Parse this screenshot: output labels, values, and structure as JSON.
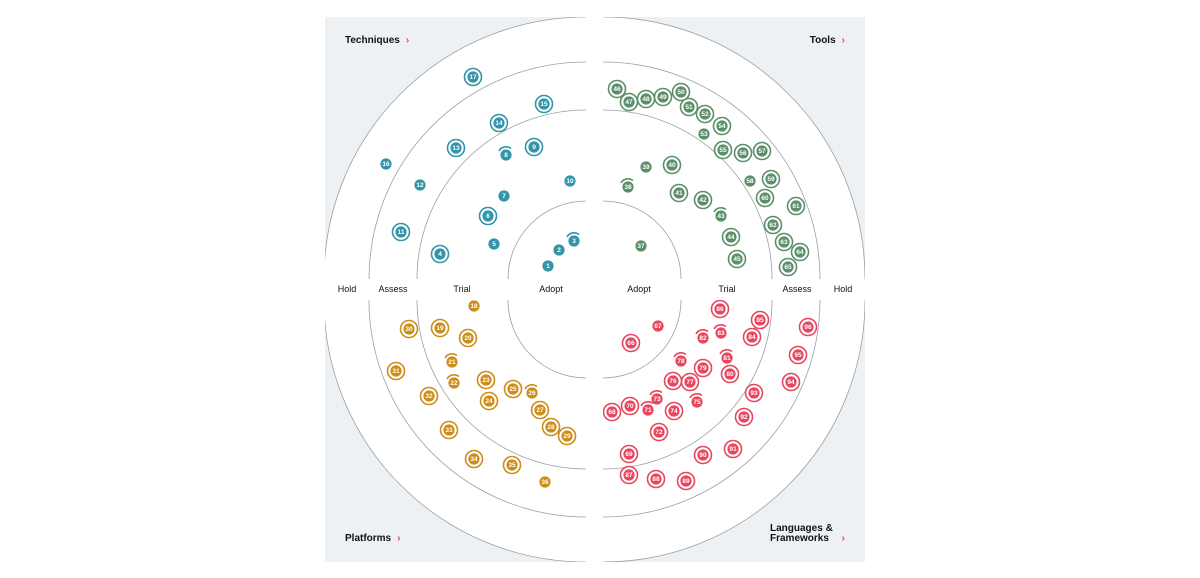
{
  "quadrants": {
    "techniques": {
      "title": "Techniques",
      "color": "#3295a8"
    },
    "tools": {
      "title": "Tools",
      "color": "#5b8f69"
    },
    "platforms": {
      "title": "Platforms",
      "color": "#cc8d1a"
    },
    "languages": {
      "title": "Languages & Frameworks",
      "color": "#e8465e"
    }
  },
  "rings": {
    "left": [
      "Hold",
      "Assess",
      "Trial",
      "Adopt"
    ],
    "right": [
      "Adopt",
      "Trial",
      "Assess",
      "Hold"
    ]
  },
  "blips": {
    "techniques": [
      {
        "n": "1",
        "style": "plain"
      },
      {
        "n": "2",
        "style": "plain"
      },
      {
        "n": "3",
        "style": "moved"
      },
      {
        "n": "4",
        "style": "new"
      },
      {
        "n": "5",
        "style": "plain"
      },
      {
        "n": "6",
        "style": "new"
      },
      {
        "n": "7",
        "style": "plain"
      },
      {
        "n": "8",
        "style": "moved"
      },
      {
        "n": "9",
        "style": "new"
      },
      {
        "n": "10",
        "style": "plain"
      },
      {
        "n": "11",
        "style": "new"
      },
      {
        "n": "12",
        "style": "plain"
      },
      {
        "n": "13",
        "style": "new"
      },
      {
        "n": "14",
        "style": "new"
      },
      {
        "n": "15",
        "style": "new"
      },
      {
        "n": "16",
        "style": "plain"
      },
      {
        "n": "17",
        "style": "new"
      }
    ],
    "tools": [
      {
        "n": "37",
        "style": "plain"
      },
      {
        "n": "38",
        "style": "moved"
      },
      {
        "n": "39",
        "style": "plain"
      },
      {
        "n": "40",
        "style": "new"
      },
      {
        "n": "41",
        "style": "new"
      },
      {
        "n": "42",
        "style": "new"
      },
      {
        "n": "43",
        "style": "moved"
      },
      {
        "n": "44",
        "style": "new"
      },
      {
        "n": "45",
        "style": "new"
      },
      {
        "n": "46",
        "style": "new"
      },
      {
        "n": "47",
        "style": "new"
      },
      {
        "n": "48",
        "style": "new"
      },
      {
        "n": "49",
        "style": "new"
      },
      {
        "n": "50",
        "style": "new"
      },
      {
        "n": "51",
        "style": "new"
      },
      {
        "n": "52",
        "style": "new"
      },
      {
        "n": "53",
        "style": "plain"
      },
      {
        "n": "54",
        "style": "new"
      },
      {
        "n": "55",
        "style": "new"
      },
      {
        "n": "56",
        "style": "new"
      },
      {
        "n": "57",
        "style": "new"
      },
      {
        "n": "58",
        "style": "plain"
      },
      {
        "n": "59",
        "style": "new"
      },
      {
        "n": "60",
        "style": "new"
      },
      {
        "n": "61",
        "style": "new"
      },
      {
        "n": "62",
        "style": "new"
      },
      {
        "n": "63",
        "style": "new"
      },
      {
        "n": "64",
        "style": "new"
      },
      {
        "n": "65",
        "style": "new"
      }
    ],
    "platforms": [
      {
        "n": "18",
        "style": "plain"
      },
      {
        "n": "19",
        "style": "new"
      },
      {
        "n": "20",
        "style": "new"
      },
      {
        "n": "21",
        "style": "moved"
      },
      {
        "n": "22",
        "style": "moved"
      },
      {
        "n": "23",
        "style": "new"
      },
      {
        "n": "24",
        "style": "new"
      },
      {
        "n": "25",
        "style": "new"
      },
      {
        "n": "26",
        "style": "moved"
      },
      {
        "n": "27",
        "style": "new"
      },
      {
        "n": "28",
        "style": "new"
      },
      {
        "n": "29",
        "style": "new"
      },
      {
        "n": "30",
        "style": "new"
      },
      {
        "n": "31",
        "style": "new"
      },
      {
        "n": "32",
        "style": "new"
      },
      {
        "n": "33",
        "style": "new"
      },
      {
        "n": "34",
        "style": "new"
      },
      {
        "n": "35",
        "style": "new"
      },
      {
        "n": "36",
        "style": "plain"
      }
    ],
    "languages": [
      {
        "n": "66",
        "style": "new"
      },
      {
        "n": "67",
        "style": "plain"
      },
      {
        "n": "68",
        "style": "new"
      },
      {
        "n": "69",
        "style": "new"
      },
      {
        "n": "70",
        "style": "new"
      },
      {
        "n": "71",
        "style": "moved"
      },
      {
        "n": "72",
        "style": "new"
      },
      {
        "n": "73",
        "style": "moved"
      },
      {
        "n": "74",
        "style": "new"
      },
      {
        "n": "75",
        "style": "moved"
      },
      {
        "n": "76",
        "style": "new"
      },
      {
        "n": "77",
        "style": "new"
      },
      {
        "n": "78",
        "style": "moved"
      },
      {
        "n": "79",
        "style": "new"
      },
      {
        "n": "80",
        "style": "new"
      },
      {
        "n": "81",
        "style": "moved"
      },
      {
        "n": "82",
        "style": "moved"
      },
      {
        "n": "83",
        "style": "moved"
      },
      {
        "n": "84",
        "style": "new"
      },
      {
        "n": "85",
        "style": "new"
      },
      {
        "n": "86",
        "style": "new"
      },
      {
        "n": "87",
        "style": "new"
      },
      {
        "n": "88",
        "style": "new"
      },
      {
        "n": "89",
        "style": "new"
      },
      {
        "n": "90",
        "style": "new"
      },
      {
        "n": "91",
        "style": "new"
      },
      {
        "n": "92",
        "style": "new"
      },
      {
        "n": "93",
        "style": "new"
      },
      {
        "n": "94",
        "style": "new"
      },
      {
        "n": "95",
        "style": "new"
      },
      {
        "n": "96",
        "style": "new"
      }
    ]
  }
}
